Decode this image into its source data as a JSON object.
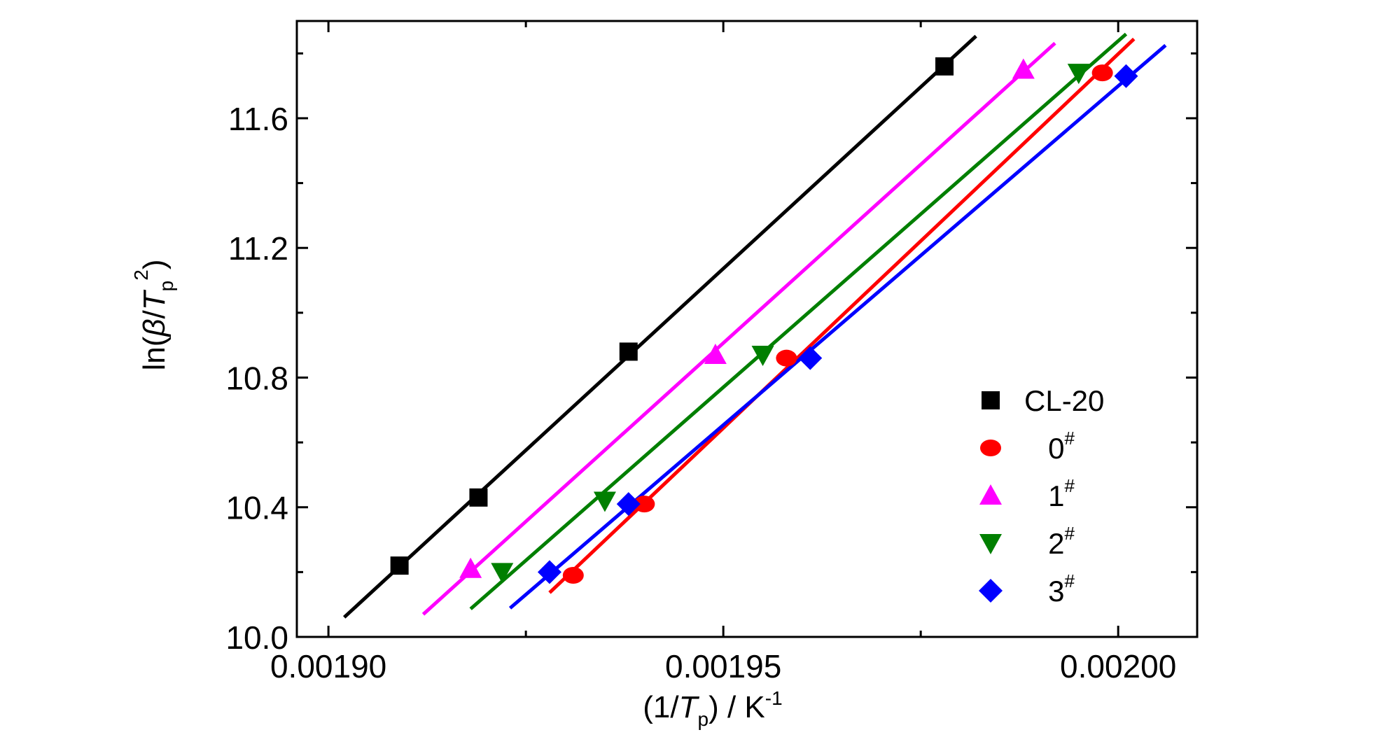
{
  "chart_data": {
    "type": "scatter",
    "xlim": [
      0.001896,
      0.00201
    ],
    "ylim": [
      10.0,
      11.9
    ],
    "xticks": [
      "0.00190",
      "0.00195",
      "0.00200"
    ],
    "xtick_values": [
      0.0019,
      0.00195,
      0.002
    ],
    "yticks": [
      "10.0",
      "10.4",
      "10.8",
      "11.2",
      "11.6"
    ],
    "ytick_values": [
      10.0,
      10.4,
      10.8,
      11.2,
      11.6
    ],
    "xlabel": {
      "pre": "(1/",
      "var": "T",
      "sub": "p",
      "post": ") / K",
      "sup": "-1"
    },
    "ylabel": {
      "pre": "ln(",
      "beta": "β",
      "slash": "/",
      "var": "T",
      "sub": "p",
      "sup": "2",
      "post": ")"
    },
    "grid": false,
    "legend_position": "bottom-right",
    "series": [
      {
        "name": "CL-20",
        "sup": "",
        "marker": "square",
        "color": "#000000",
        "x": [
          0.001909,
          0.001919,
          0.001938,
          0.001978
        ],
        "y": [
          10.22,
          10.43,
          10.88,
          11.76
        ],
        "fit_x": [
          0.001902,
          0.001982
        ]
      },
      {
        "name": "0",
        "sup": "#",
        "marker": "circle",
        "color": "#ff0000",
        "x": [
          0.001931,
          0.00194,
          0.001958,
          0.001998
        ],
        "y": [
          10.19,
          10.41,
          10.86,
          11.74
        ],
        "fit_x": [
          0.001928,
          0.002002
        ]
      },
      {
        "name": "1",
        "sup": "#",
        "marker": "triangle-up",
        "color": "#ff00ff",
        "x": [
          0.001918,
          0.001949,
          0.001988
        ],
        "y": [
          10.21,
          10.87,
          11.75
        ],
        "fit_x": [
          0.001912,
          0.001992
        ]
      },
      {
        "name": "2",
        "sup": "#",
        "marker": "triangle-down",
        "color": "#007f00",
        "x": [
          0.001922,
          0.001935,
          0.001955,
          0.001995
        ],
        "y": [
          10.2,
          10.42,
          10.87,
          11.74
        ],
        "fit_x": [
          0.001918,
          0.002001
        ]
      },
      {
        "name": "3",
        "sup": "#",
        "marker": "diamond",
        "color": "#0000ff",
        "x": [
          0.001928,
          0.001938,
          0.001961,
          0.002001
        ],
        "y": [
          10.2,
          10.41,
          10.86,
          11.73
        ],
        "fit_x": [
          0.001923,
          0.002006
        ]
      }
    ]
  }
}
